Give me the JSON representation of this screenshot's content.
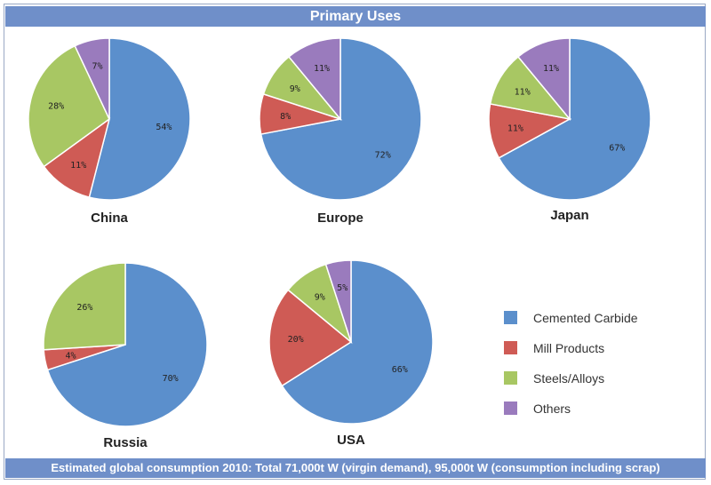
{
  "title": "Primary Uses",
  "footer": "Estimated global consumption 2010: Total 71,000t W (virgin demand), 95,000t W (consumption including scrap)",
  "colors": {
    "Cemented Carbide": "#5b8fcc",
    "Mill Products": "#cf5b55",
    "Steels/Alloys": "#a8c763",
    "Others": "#9a7bbd"
  },
  "chart_data": [
    {
      "type": "pie",
      "title": "China",
      "slices": [
        {
          "label": "Cemented Carbide",
          "value": 54,
          "display": "54%"
        },
        {
          "label": "Mill Products",
          "value": 11,
          "display": "11%"
        },
        {
          "label": "Steels/Alloys",
          "value": 28,
          "display": "28%"
        },
        {
          "label": "Others",
          "value": 7,
          "display": "7%"
        }
      ]
    },
    {
      "type": "pie",
      "title": "Europe",
      "slices": [
        {
          "label": "Cemented Carbide",
          "value": 72,
          "display": "72%"
        },
        {
          "label": "Mill Products",
          "value": 8,
          "display": "8%"
        },
        {
          "label": "Steels/Alloys",
          "value": 9,
          "display": "9%"
        },
        {
          "label": "Others",
          "value": 11,
          "display": "11%"
        }
      ]
    },
    {
      "type": "pie",
      "title": "Japan",
      "slices": [
        {
          "label": "Cemented Carbide",
          "value": 67,
          "display": "67%"
        },
        {
          "label": "Mill Products",
          "value": 11,
          "display": "11%"
        },
        {
          "label": "Steels/Alloys",
          "value": 11,
          "display": "11%"
        },
        {
          "label": "Others",
          "value": 11,
          "display": "11%"
        }
      ]
    },
    {
      "type": "pie",
      "title": "Russia",
      "slices": [
        {
          "label": "Cemented Carbide",
          "value": 70,
          "display": "70%"
        },
        {
          "label": "Mill Products",
          "value": 4,
          "display": "4%"
        },
        {
          "label": "Steels/Alloys",
          "value": 26,
          "display": "26%"
        }
      ]
    },
    {
      "type": "pie",
      "title": "USA",
      "slices": [
        {
          "label": "Cemented Carbide",
          "value": 66,
          "display": "66%"
        },
        {
          "label": "Mill Products",
          "value": 20,
          "display": "20%"
        },
        {
          "label": "Steels/Alloys",
          "value": 9,
          "display": "9%"
        },
        {
          "label": "Others",
          "value": 5,
          "display": "5%"
        }
      ]
    }
  ],
  "legend": {
    "placement": "bottom-right",
    "items": [
      "Cemented Carbide",
      "Mill Products",
      "Steels/Alloys",
      "Others"
    ]
  }
}
